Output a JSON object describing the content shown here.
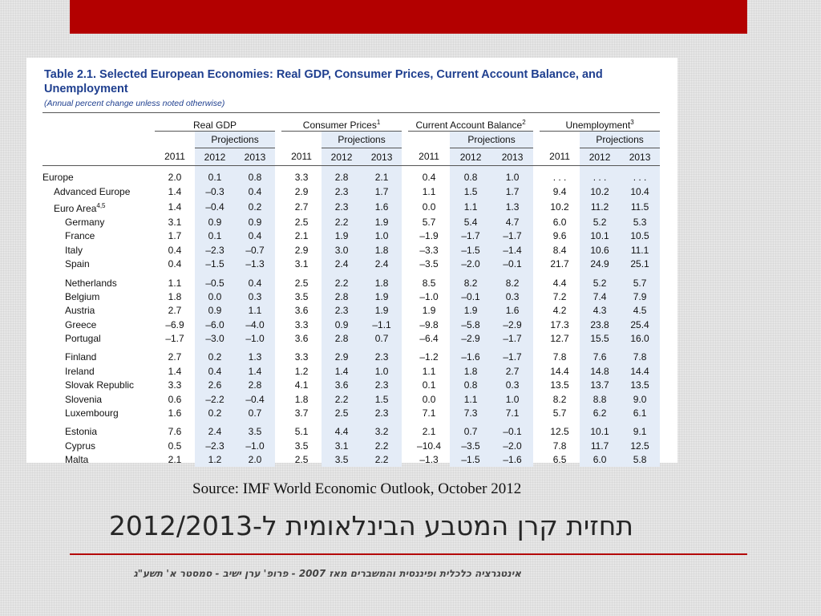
{
  "table": {
    "title": "Table 2.1. Selected European Economies: Real GDP, Consumer Prices, Current Account Balance, and Unemployment",
    "subtitle": "(Annual percent change unless noted otherwise)",
    "groups": [
      {
        "label": "Real GDP",
        "sup": ""
      },
      {
        "label": "Consumer Prices",
        "sup": "1"
      },
      {
        "label": "Current Account Balance",
        "sup": "2"
      },
      {
        "label": "Unemployment",
        "sup": "3"
      }
    ],
    "projections_label": "Projections",
    "years": [
      "2011",
      "2012",
      "2013"
    ],
    "sections": [
      [
        {
          "name": "Europe",
          "sup": "",
          "level": 0,
          "bold": true,
          "values": [
            "2.0",
            "0.1",
            "0.8",
            "3.3",
            "2.8",
            "2.1",
            "0.4",
            "0.8",
            "1.0",
            ". . .",
            ". . .",
            ". . ."
          ]
        },
        {
          "name": "Advanced Europe",
          "sup": "",
          "level": 1,
          "bold": true,
          "values": [
            "1.4",
            "–0.3",
            "0.4",
            "2.9",
            "2.3",
            "1.7",
            "1.1",
            "1.5",
            "1.7",
            "9.4",
            "10.2",
            "10.4"
          ]
        },
        {
          "name": "Euro Area",
          "sup": "4,5",
          "level": 1,
          "bold": false,
          "values": [
            "1.4",
            "–0.4",
            "0.2",
            "2.7",
            "2.3",
            "1.6",
            "0.0",
            "1.1",
            "1.3",
            "10.2",
            "11.2",
            "11.5"
          ]
        },
        {
          "name": "Germany",
          "sup": "",
          "level": 2,
          "bold": false,
          "values": [
            "3.1",
            "0.9",
            "0.9",
            "2.5",
            "2.2",
            "1.9",
            "5.7",
            "5.4",
            "4.7",
            "6.0",
            "5.2",
            "5.3"
          ]
        },
        {
          "name": "France",
          "sup": "",
          "level": 2,
          "bold": false,
          "values": [
            "1.7",
            "0.1",
            "0.4",
            "2.1",
            "1.9",
            "1.0",
            "–1.9",
            "–1.7",
            "–1.7",
            "9.6",
            "10.1",
            "10.5"
          ]
        },
        {
          "name": "Italy",
          "sup": "",
          "level": 2,
          "bold": false,
          "values": [
            "0.4",
            "–2.3",
            "–0.7",
            "2.9",
            "3.0",
            "1.8",
            "–3.3",
            "–1.5",
            "–1.4",
            "8.4",
            "10.6",
            "11.1"
          ]
        },
        {
          "name": "Spain",
          "sup": "",
          "level": 2,
          "bold": false,
          "values": [
            "0.4",
            "–1.5",
            "–1.3",
            "3.1",
            "2.4",
            "2.4",
            "–3.5",
            "–2.0",
            "–0.1",
            "21.7",
            "24.9",
            "25.1"
          ]
        }
      ],
      [
        {
          "name": "Netherlands",
          "sup": "",
          "level": 2,
          "bold": false,
          "values": [
            "1.1",
            "–0.5",
            "0.4",
            "2.5",
            "2.2",
            "1.8",
            "8.5",
            "8.2",
            "8.2",
            "4.4",
            "5.2",
            "5.7"
          ]
        },
        {
          "name": "Belgium",
          "sup": "",
          "level": 2,
          "bold": false,
          "values": [
            "1.8",
            "0.0",
            "0.3",
            "3.5",
            "2.8",
            "1.9",
            "–1.0",
            "–0.1",
            "0.3",
            "7.2",
            "7.4",
            "7.9"
          ]
        },
        {
          "name": "Austria",
          "sup": "",
          "level": 2,
          "bold": false,
          "values": [
            "2.7",
            "0.9",
            "1.1",
            "3.6",
            "2.3",
            "1.9",
            "1.9",
            "1.9",
            "1.6",
            "4.2",
            "4.3",
            "4.5"
          ]
        },
        {
          "name": "Greece",
          "sup": "",
          "level": 2,
          "bold": false,
          "values": [
            "–6.9",
            "–6.0",
            "–4.0",
            "3.3",
            "0.9",
            "–1.1",
            "–9.8",
            "–5.8",
            "–2.9",
            "17.3",
            "23.8",
            "25.4"
          ]
        },
        {
          "name": "Portugal",
          "sup": "",
          "level": 2,
          "bold": false,
          "values": [
            "–1.7",
            "–3.0",
            "–1.0",
            "3.6",
            "2.8",
            "0.7",
            "–6.4",
            "–2.9",
            "–1.7",
            "12.7",
            "15.5",
            "16.0"
          ]
        }
      ],
      [
        {
          "name": "Finland",
          "sup": "",
          "level": 2,
          "bold": false,
          "values": [
            "2.7",
            "0.2",
            "1.3",
            "3.3",
            "2.9",
            "2.3",
            "–1.2",
            "–1.6",
            "–1.7",
            "7.8",
            "7.6",
            "7.8"
          ]
        },
        {
          "name": "Ireland",
          "sup": "",
          "level": 2,
          "bold": false,
          "values": [
            "1.4",
            "0.4",
            "1.4",
            "1.2",
            "1.4",
            "1.0",
            "1.1",
            "1.8",
            "2.7",
            "14.4",
            "14.8",
            "14.4"
          ]
        },
        {
          "name": "Slovak Republic",
          "sup": "",
          "level": 2,
          "bold": false,
          "values": [
            "3.3",
            "2.6",
            "2.8",
            "4.1",
            "3.6",
            "2.3",
            "0.1",
            "0.8",
            "0.3",
            "13.5",
            "13.7",
            "13.5"
          ]
        },
        {
          "name": "Slovenia",
          "sup": "",
          "level": 2,
          "bold": false,
          "values": [
            "0.6",
            "–2.2",
            "–0.4",
            "1.8",
            "2.2",
            "1.5",
            "0.0",
            "1.1",
            "1.0",
            "8.2",
            "8.8",
            "9.0"
          ]
        },
        {
          "name": "Luxembourg",
          "sup": "",
          "level": 2,
          "bold": false,
          "values": [
            "1.6",
            "0.2",
            "0.7",
            "3.7",
            "2.5",
            "2.3",
            "7.1",
            "7.3",
            "7.1",
            "5.7",
            "6.2",
            "6.1"
          ]
        }
      ],
      [
        {
          "name": "Estonia",
          "sup": "",
          "level": 2,
          "bold": false,
          "values": [
            "7.6",
            "2.4",
            "3.5",
            "5.1",
            "4.4",
            "3.2",
            "2.1",
            "0.7",
            "–0.1",
            "12.5",
            "10.1",
            "9.1"
          ]
        },
        {
          "name": "Cyprus",
          "sup": "",
          "level": 2,
          "bold": false,
          "values": [
            "0.5",
            "–2.3",
            "–1.0",
            "3.5",
            "3.1",
            "2.2",
            "–10.4",
            "–3.5",
            "–2.0",
            "7.8",
            "11.7",
            "12.5"
          ]
        },
        {
          "name": "Malta",
          "sup": "",
          "level": 2,
          "bold": false,
          "values": [
            "2.1",
            "1.2",
            "2.0",
            "2.5",
            "3.5",
            "2.2",
            "–1.3",
            "–1.5",
            "–1.6",
            "6.5",
            "6.0",
            "5.8"
          ]
        }
      ]
    ]
  },
  "source": "Source: IMF World Economic Outlook, October 2012",
  "heading": "תחזית קרן המטבע הבינלאומית ל-2012/2013",
  "footer": "אינטגרציה כלכלית ופיננסית והמשברים מאז 2007 - פרופ' ערן ישיב - סמסטר א' תשע\"ג",
  "colors": {
    "accent": "#b30000",
    "title_blue": "#1f3f8f",
    "projection_shade": "#e4ecf7"
  }
}
